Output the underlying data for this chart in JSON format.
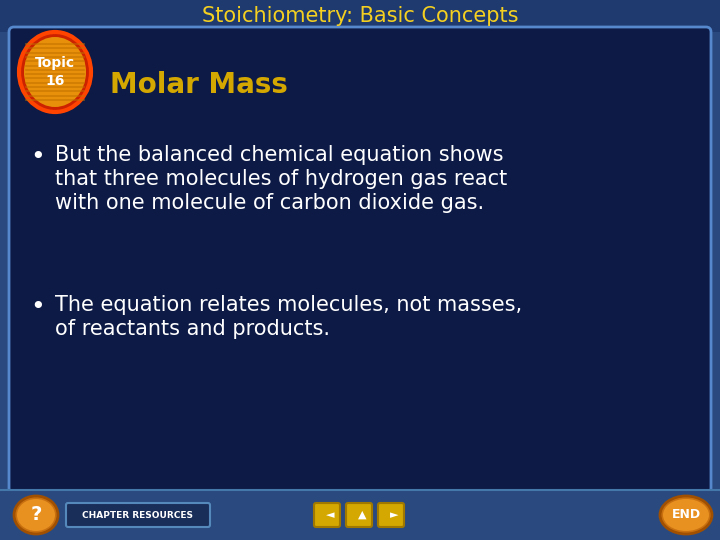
{
  "outer_bg": "#2a4a7f",
  "title_text": "Stoichiometry: Basic Concepts",
  "title_color": "#f5d020",
  "title_fontsize": 15,
  "subtitle_text": "Molar Mass",
  "subtitle_color": "#d4a800",
  "subtitle_fontsize": 20,
  "bullet1_line1": "But the balanced chemical equation shows",
  "bullet1_line2": "that three molecules of hydrogen gas react",
  "bullet1_line3": "with one molecule of carbon dioxide gas.",
  "bullet2_line1": "The equation relates molecules, not masses,",
  "bullet2_line2": "of reactants and products.",
  "bullet_color": "#ffffff",
  "bullet_fontsize": 15,
  "topic_text_color": "#ffffff",
  "footer_text": "CHAPTER RESOURCES",
  "footer_color": "#ffffff",
  "inner_bg": "#0d1a45",
  "panel_border": "#5588cc",
  "title_bar_bg": "#1e3a6e"
}
